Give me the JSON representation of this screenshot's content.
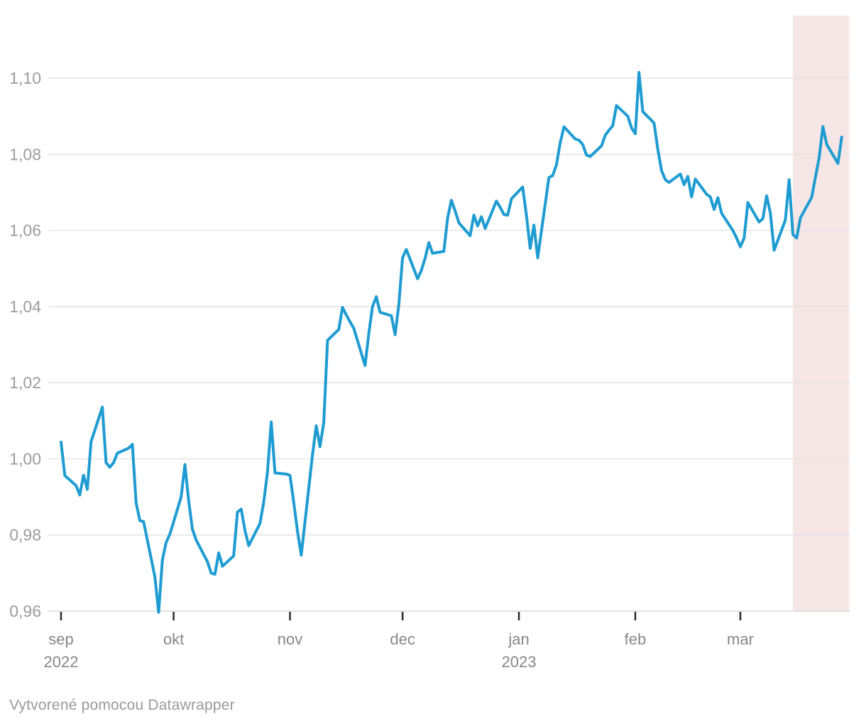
{
  "chart": {
    "footer_credit": "Vytvorené pomocou Datawrapper"
  },
  "chart_data": {
    "type": "line",
    "title": "",
    "xlabel": "",
    "ylabel": "",
    "grid": "horizontal",
    "legend": "none",
    "line_color": "#1e9cd2",
    "grid_color": "#e4e4e4",
    "baseline_grid_color": "#d8d8d8",
    "axis_text_color": "#878787",
    "y_label_color": "#9c9c9c",
    "tick_mark_color": "#2b2b2b",
    "highlight_color": "#f7e6e6",
    "highlight_range": {
      "start": "2023-03-15",
      "end": "2023-03-30"
    },
    "ylim": [
      0.96,
      1.116
    ],
    "y_axis": {
      "ticks": [
        {
          "value": 0.96,
          "label": "0,96"
        },
        {
          "value": 0.98,
          "label": "0,98"
        },
        {
          "value": 1.0,
          "label": "1,00"
        },
        {
          "value": 1.02,
          "label": "1,02"
        },
        {
          "value": 1.04,
          "label": "1,04"
        },
        {
          "value": 1.06,
          "label": "1,06"
        },
        {
          "value": 1.08,
          "label": "1,08"
        },
        {
          "value": 1.1,
          "label": "1,10"
        }
      ]
    },
    "x_axis": {
      "ticks": [
        {
          "date": "2022-09-01",
          "label": "sep",
          "sublabel": "2022"
        },
        {
          "date": "2022-10-01",
          "label": "okt",
          "sublabel": ""
        },
        {
          "date": "2022-11-01",
          "label": "nov",
          "sublabel": ""
        },
        {
          "date": "2022-12-01",
          "label": "dec",
          "sublabel": ""
        },
        {
          "date": "2023-01-01",
          "label": "jan",
          "sublabel": "2023"
        },
        {
          "date": "2023-02-01",
          "label": "feb",
          "sublabel": ""
        },
        {
          "date": "2023-03-01",
          "label": "mar",
          "sublabel": ""
        }
      ]
    },
    "x": [
      "2022-09-01",
      "2022-09-02",
      "2022-09-05",
      "2022-09-06",
      "2022-09-07",
      "2022-09-08",
      "2022-09-09",
      "2022-09-12",
      "2022-09-13",
      "2022-09-14",
      "2022-09-15",
      "2022-09-16",
      "2022-09-19",
      "2022-09-20",
      "2022-09-21",
      "2022-09-22",
      "2022-09-23",
      "2022-09-26",
      "2022-09-27",
      "2022-09-28",
      "2022-09-29",
      "2022-09-30",
      "2022-10-03",
      "2022-10-04",
      "2022-10-05",
      "2022-10-06",
      "2022-10-07",
      "2022-10-10",
      "2022-10-11",
      "2022-10-12",
      "2022-10-13",
      "2022-10-14",
      "2022-10-17",
      "2022-10-18",
      "2022-10-19",
      "2022-10-20",
      "2022-10-21",
      "2022-10-24",
      "2022-10-25",
      "2022-10-26",
      "2022-10-27",
      "2022-10-28",
      "2022-10-31",
      "2022-11-01",
      "2022-11-02",
      "2022-11-03",
      "2022-11-04",
      "2022-11-07",
      "2022-11-08",
      "2022-11-09",
      "2022-11-10",
      "2022-11-11",
      "2022-11-14",
      "2022-11-15",
      "2022-11-16",
      "2022-11-17",
      "2022-11-18",
      "2022-11-21",
      "2022-11-22",
      "2022-11-23",
      "2022-11-24",
      "2022-11-25",
      "2022-11-28",
      "2022-11-29",
      "2022-11-30",
      "2022-12-01",
      "2022-12-02",
      "2022-12-05",
      "2022-12-06",
      "2022-12-07",
      "2022-12-08",
      "2022-12-09",
      "2022-12-12",
      "2022-12-13",
      "2022-12-14",
      "2022-12-15",
      "2022-12-16",
      "2022-12-19",
      "2022-12-20",
      "2022-12-21",
      "2022-12-22",
      "2022-12-23",
      "2022-12-26",
      "2022-12-27",
      "2022-12-28",
      "2022-12-29",
      "2022-12-30",
      "2023-01-02",
      "2023-01-03",
      "2023-01-04",
      "2023-01-05",
      "2023-01-06",
      "2023-01-09",
      "2023-01-10",
      "2023-01-11",
      "2023-01-12",
      "2023-01-13",
      "2023-01-16",
      "2023-01-17",
      "2023-01-18",
      "2023-01-19",
      "2023-01-20",
      "2023-01-23",
      "2023-01-24",
      "2023-01-25",
      "2023-01-26",
      "2023-01-27",
      "2023-01-30",
      "2023-01-31",
      "2023-02-01",
      "2023-02-02",
      "2023-02-03",
      "2023-02-06",
      "2023-02-07",
      "2023-02-08",
      "2023-02-09",
      "2023-02-10",
      "2023-02-13",
      "2023-02-14",
      "2023-02-15",
      "2023-02-16",
      "2023-02-17",
      "2023-02-20",
      "2023-02-21",
      "2023-02-22",
      "2023-02-23",
      "2023-02-24",
      "2023-02-27",
      "2023-02-28",
      "2023-03-01",
      "2023-03-02",
      "2023-03-03",
      "2023-03-06",
      "2023-03-07",
      "2023-03-08",
      "2023-03-09",
      "2023-03-10",
      "2023-03-13",
      "2023-03-14",
      "2023-03-15",
      "2023-03-16",
      "2023-03-17",
      "2023-03-20",
      "2023-03-21",
      "2023-03-22",
      "2023-03-23",
      "2023-03-24",
      "2023-03-27",
      "2023-03-28"
    ],
    "y": [
      1.0044,
      0.9956,
      0.993,
      0.9905,
      0.9957,
      0.992,
      1.0045,
      1.0136,
      0.999,
      0.9978,
      0.999,
      1.0015,
      1.0028,
      1.0038,
      0.9885,
      0.9838,
      0.9835,
      0.969,
      0.9597,
      0.9735,
      0.978,
      0.9802,
      0.99,
      0.9985,
      0.989,
      0.9815,
      0.9787,
      0.973,
      0.97,
      0.9697,
      0.9753,
      0.9718,
      0.9745,
      0.986,
      0.9868,
      0.9812,
      0.9772,
      0.983,
      0.9886,
      0.9965,
      1.0097,
      0.9963,
      0.996,
      0.9957,
      0.9886,
      0.981,
      0.9747,
      1.001,
      1.0087,
      1.0032,
      1.0095,
      1.0311,
      1.034,
      1.0398,
      1.0378,
      1.036,
      1.0343,
      1.0245,
      1.033,
      1.04,
      1.0426,
      1.0385,
      1.0376,
      1.0326,
      1.0406,
      1.0528,
      1.055,
      1.0473,
      1.0495,
      1.0527,
      1.0568,
      1.054,
      1.0545,
      1.0633,
      1.0679,
      1.0651,
      1.062,
      1.0586,
      1.064,
      1.0612,
      1.0636,
      1.0605,
      1.0677,
      1.0661,
      1.0642,
      1.064,
      1.0683,
      1.0714,
      1.064,
      1.0553,
      1.0614,
      1.0528,
      1.0739,
      1.0744,
      1.0772,
      1.083,
      1.0872,
      1.084,
      1.0837,
      1.0826,
      1.0798,
      1.0794,
      1.0822,
      1.085,
      1.0863,
      1.0875,
      1.0928,
      1.09,
      1.0869,
      1.0854,
      1.1015,
      1.0912,
      1.0882,
      1.0813,
      1.0757,
      1.0733,
      1.0726,
      1.0748,
      1.072,
      1.0742,
      1.0688,
      1.0735,
      1.0695,
      1.0688,
      1.0655,
      1.0686,
      1.0645,
      1.06,
      1.058,
      1.0557,
      1.058,
      1.0673,
      1.0622,
      1.0631,
      1.0691,
      1.0645,
      1.0548,
      1.0627,
      1.0733,
      1.0589,
      1.058,
      1.0633,
      1.0687,
      1.0739,
      1.0791,
      1.0873,
      1.0826,
      1.0776,
      1.0845
    ]
  }
}
